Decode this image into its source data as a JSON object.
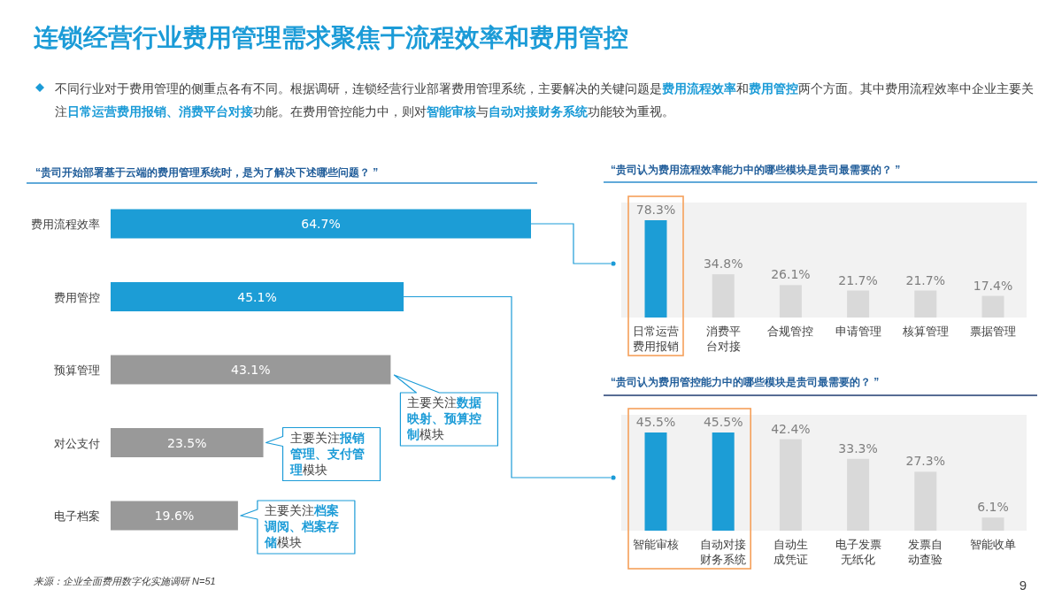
{
  "chart_data": [
    {
      "type": "other",
      "title": "连锁经营行业费用管理需求聚焦于流程效率和费用管控",
      "subtitle": "不同行业对于费用管理的侧重点各有不同。根据调研，连锁经营行业部署费用管理系统，主要解决的关键问题是**费用流程效率**和**费用管控**两个方面。其中费用流程效率中企业主要关注**日常运营费用报销、消费平台对接**功能。在费用管控能力中，则对**智能审核**与**自动对接财务系统**功能较为重视。",
      "annotations": [
        "来源：企业全面费用数字化实施调研 N=51",
        "9"
      ]
    },
    {
      "type": "bar",
      "orientation": "horizontal",
      "title": "“贵司开始部署基于云端的费用管理系统时，是为了解决下述哪些问题？ ”",
      "categories": [
        "费用流程效率",
        "费用管控",
        "预算管理",
        "对公支付",
        "电子档案"
      ],
      "values": [
        64.7,
        45.1,
        43.1,
        23.5,
        19.6
      ],
      "colors": [
        "#1c9dd6",
        "#1c9dd6",
        "#999999",
        "#999999",
        "#999999"
      ],
      "value_labels": [
        "64.7%",
        "45.1%",
        "43.1%",
        "23.5%",
        "19.6%"
      ],
      "annotations": [
        "主要关注**数据映射、预算控制**模块",
        "主要关注**报销管理、支付管理**模块",
        "主要关注**档案调阅、档案存储**模块"
      ]
    },
    {
      "type": "bar",
      "title": "“贵司认为费用流程效率能力中的哪些模块是贵司最需要的？ ”",
      "categories": [
        "日常运营费用报销",
        "消费平台对接",
        "合规管控",
        "申请管理",
        "核算管理",
        "票据管理"
      ],
      "values": [
        78.3,
        34.8,
        26.1,
        21.7,
        21.7,
        17.4
      ],
      "colors": [
        "#1c9dd6",
        "#d9d9d9",
        "#d9d9d9",
        "#d9d9d9",
        "#d9d9d9",
        "#d9d9d9"
      ],
      "value_labels": [
        "78.3%",
        "34.8%",
        "26.1%",
        "21.7%",
        "21.7%",
        "17.4%"
      ]
    },
    {
      "type": "bar",
      "title": "“贵司认为费用管控能力中的哪些模块是贵司最需要的？ ”",
      "categories": [
        "智能审核",
        "自动对接财务系统",
        "自动生成凭证",
        "电子发票无纸化",
        "发票自动查验",
        "智能收单"
      ],
      "values": [
        45.5,
        45.5,
        42.4,
        33.3,
        27.3,
        6.1
      ],
      "colors": [
        "#1c9dd6",
        "#1c9dd6",
        "#d9d9d9",
        "#d9d9d9",
        "#d9d9d9",
        "#d9d9d9"
      ],
      "value_labels": [
        "45.5%",
        "45.5%",
        "42.4%",
        "33.3%",
        "27.3%",
        "6.1%"
      ]
    }
  ]
}
